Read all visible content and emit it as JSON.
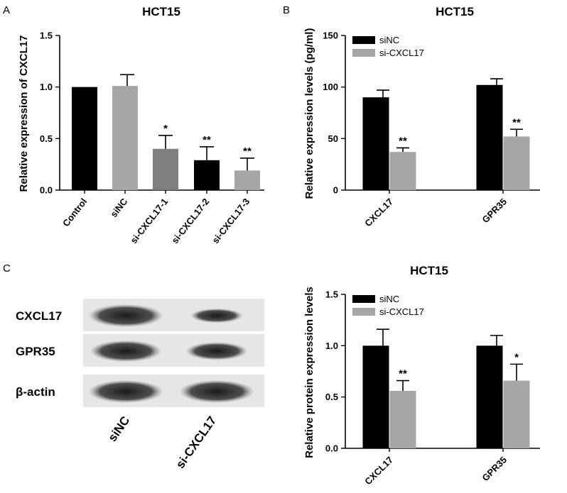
{
  "colors": {
    "black": "#000000",
    "dark_gray": "#7f7f7f",
    "light_gray": "#a6a6a6",
    "blot_bg": "#e6e6e6",
    "band": "#1a1a1a"
  },
  "panels": {
    "a": "A",
    "b": "B",
    "c": "C"
  },
  "chart_data": [
    {
      "id": "A",
      "type": "bar",
      "title": "HCT15",
      "ylabel": "Relative expression of CXCL17",
      "xlabel": "",
      "ylim": [
        0,
        1.5
      ],
      "yticks": [
        "0.0",
        "0.5",
        "1.0",
        "1.5"
      ],
      "categories": [
        "Control",
        "siNC",
        "si-CXCL17-1",
        "si-CXCL17-2",
        "si-CXCL17-3"
      ],
      "values": [
        1.0,
        1.01,
        0.4,
        0.29,
        0.19
      ],
      "errors": [
        0,
        0.11,
        0.13,
        0.13,
        0.12
      ],
      "significance": [
        "",
        "",
        "*",
        "**",
        "**"
      ],
      "bar_colors": [
        "#000000",
        "#a6a6a6",
        "#7f7f7f",
        "#000000",
        "#a6a6a6"
      ]
    },
    {
      "id": "B",
      "type": "bar",
      "title": "HCT15",
      "ylabel": "Relative expression levels (pg/ml)",
      "xlabel": "",
      "ylim": [
        0,
        150
      ],
      "yticks": [
        "0",
        "50",
        "100",
        "150"
      ],
      "categories": [
        "CXCL17",
        "GPR35"
      ],
      "legend_position": "top-left",
      "series": [
        {
          "name": "siNC",
          "values": [
            90,
            102
          ],
          "errors": [
            7,
            6
          ],
          "significance": [
            "",
            ""
          ],
          "color": "#000000"
        },
        {
          "name": "si-CXCL17",
          "values": [
            37,
            52
          ],
          "errors": [
            4,
            7
          ],
          "significance": [
            "**",
            "**"
          ],
          "color": "#a6a6a6"
        }
      ]
    },
    {
      "id": "C",
      "type": "bar",
      "title": "HCT15",
      "ylabel": "Relative protein expression levels",
      "xlabel": "",
      "ylim": [
        0,
        1.5
      ],
      "yticks": [
        "0.0",
        "0.5",
        "1.0",
        "1.5"
      ],
      "categories": [
        "CXCL17",
        "GPR35"
      ],
      "legend_position": "top-left",
      "series": [
        {
          "name": "siNC",
          "values": [
            1.0,
            1.0
          ],
          "errors": [
            0.16,
            0.1
          ],
          "significance": [
            "",
            ""
          ],
          "color": "#000000"
        },
        {
          "name": "si-CXCL17",
          "values": [
            0.56,
            0.66
          ],
          "errors": [
            0.1,
            0.16
          ],
          "significance": [
            "**",
            "*"
          ],
          "color": "#a6a6a6"
        }
      ]
    }
  ],
  "blot": {
    "rows": [
      {
        "label": "CXCL17",
        "band1": 0.95,
        "band2": 0.6
      },
      {
        "label": "GPR35",
        "band1": 0.9,
        "band2": 0.75
      },
      {
        "label": "β-actin",
        "band1": 0.95,
        "band2": 0.95
      }
    ],
    "lanes": [
      "siNC",
      "si-CXCL17"
    ]
  }
}
